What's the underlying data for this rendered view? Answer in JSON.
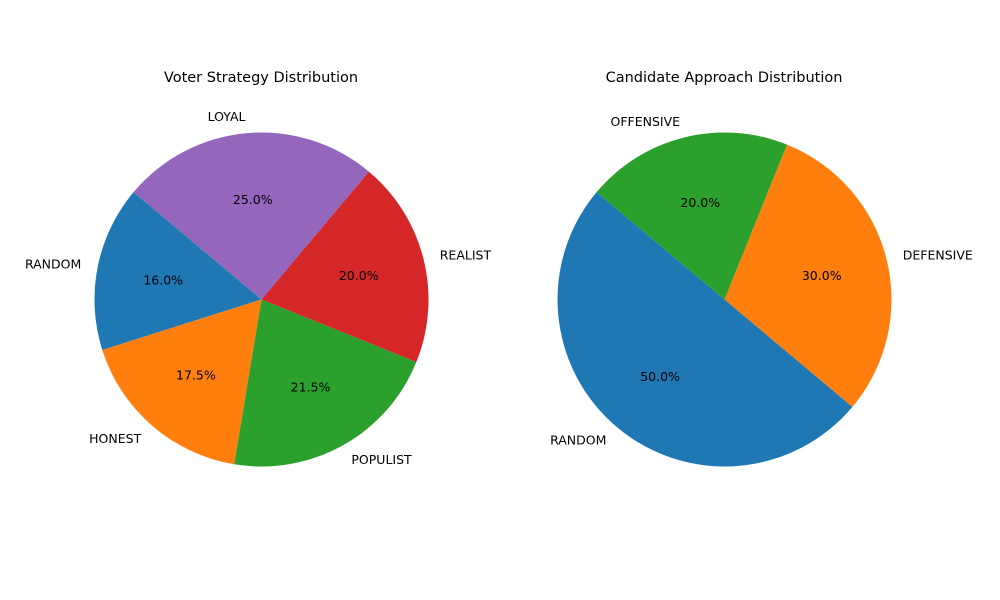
{
  "chart_data": [
    {
      "type": "pie",
      "title": "Voter Strategy Distribution",
      "categories": [
        "RANDOM",
        "HONEST",
        "POPULIST",
        "REALIST",
        "LOYAL"
      ],
      "values": [
        16.0,
        17.5,
        21.5,
        20.0,
        25.0
      ],
      "value_labels": [
        "16.0%",
        "17.5%",
        "21.5%",
        "20.0%",
        "25.0%"
      ],
      "colors": [
        "#1f77b4",
        "#ff7f0e",
        "#2ca02c",
        "#d62728",
        "#9467bd"
      ],
      "start_angle_deg": 140,
      "direction": "counterclockwise",
      "legend": "none"
    },
    {
      "type": "pie",
      "title": "Candidate Approach Distribution",
      "categories": [
        "RANDOM",
        "DEFENSIVE",
        "OFFENSIVE"
      ],
      "values": [
        50.0,
        30.0,
        20.0
      ],
      "value_labels": [
        "50.0%",
        "30.0%",
        "20.0%"
      ],
      "colors": [
        "#1f77b4",
        "#ff7f0e",
        "#2ca02c"
      ],
      "start_angle_deg": 140,
      "direction": "counterclockwise",
      "legend": "none"
    }
  ]
}
